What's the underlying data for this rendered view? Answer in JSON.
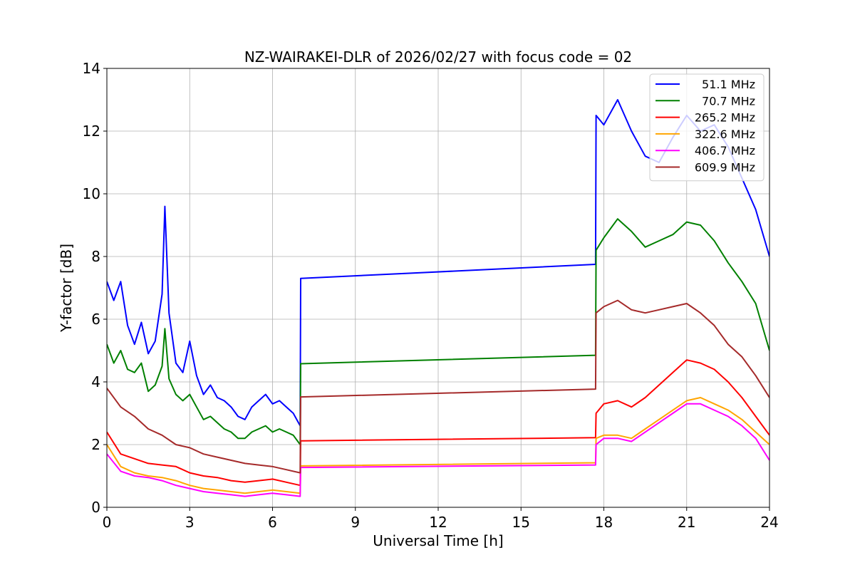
{
  "chart_data": {
    "type": "line",
    "title": "NZ-WAIRAKEI-DLR of 2026/02/27 with focus code = 02",
    "xlabel": "Universal Time [h]",
    "ylabel": "Y-factor [dB]",
    "xlim": [
      0,
      24
    ],
    "ylim": [
      0,
      14
    ],
    "xticks": [
      0,
      3,
      6,
      9,
      12,
      15,
      18,
      21,
      24
    ],
    "yticks": [
      0,
      2,
      4,
      6,
      8,
      10,
      12,
      14
    ],
    "grid": true,
    "legend_position": "top-right",
    "series": [
      {
        "name": "51.1 MHz",
        "color": "#0000ff",
        "x": [
          0,
          0.25,
          0.5,
          0.75,
          1.0,
          1.25,
          1.5,
          1.75,
          2.0,
          2.1,
          2.25,
          2.5,
          2.75,
          3.0,
          3.25,
          3.5,
          3.75,
          4.0,
          4.25,
          4.5,
          4.75,
          5.0,
          5.25,
          5.5,
          5.75,
          6.0,
          6.25,
          6.5,
          6.75,
          7.0,
          7.02,
          17.7,
          17.72,
          18.0,
          18.5,
          19.0,
          19.5,
          20.0,
          20.5,
          21.0,
          21.5,
          22.0,
          22.5,
          23.0,
          23.5,
          24.0
        ],
        "y": [
          7.2,
          6.6,
          7.2,
          5.8,
          5.2,
          5.9,
          4.9,
          5.3,
          6.8,
          9.6,
          6.2,
          4.6,
          4.3,
          5.3,
          4.2,
          3.6,
          3.9,
          3.5,
          3.4,
          3.2,
          2.9,
          2.8,
          3.2,
          3.4,
          3.6,
          3.3,
          3.4,
          3.2,
          3.0,
          2.6,
          7.3,
          7.75,
          12.5,
          12.2,
          13.0,
          12.0,
          11.2,
          11.0,
          11.8,
          12.5,
          12.0,
          12.2,
          11.5,
          10.5,
          9.5,
          8.0
        ]
      },
      {
        "name": "70.7 MHz",
        "color": "#008000",
        "x": [
          0,
          0.25,
          0.5,
          0.75,
          1.0,
          1.25,
          1.5,
          1.75,
          2.0,
          2.1,
          2.25,
          2.5,
          2.75,
          3.0,
          3.25,
          3.5,
          3.75,
          4.0,
          4.25,
          4.5,
          4.75,
          5.0,
          5.25,
          5.5,
          5.75,
          6.0,
          6.25,
          6.5,
          6.75,
          7.0,
          7.02,
          17.7,
          17.72,
          18.0,
          18.5,
          19.0,
          19.5,
          20.0,
          20.5,
          21.0,
          21.5,
          22.0,
          22.5,
          23.0,
          23.5,
          24.0
        ],
        "y": [
          5.2,
          4.6,
          5.0,
          4.4,
          4.3,
          4.6,
          3.7,
          3.9,
          4.5,
          5.7,
          4.1,
          3.6,
          3.4,
          3.6,
          3.2,
          2.8,
          2.9,
          2.7,
          2.5,
          2.4,
          2.2,
          2.2,
          2.4,
          2.5,
          2.6,
          2.4,
          2.5,
          2.4,
          2.3,
          2.0,
          4.58,
          4.85,
          8.2,
          8.6,
          9.2,
          8.8,
          8.3,
          8.5,
          8.7,
          9.1,
          9.0,
          8.5,
          7.8,
          7.2,
          6.5,
          5.0
        ]
      },
      {
        "name": "265.2 MHz",
        "color": "#ff0000",
        "x": [
          0,
          0.5,
          1.0,
          1.5,
          2.0,
          2.5,
          3.0,
          3.5,
          4.0,
          4.5,
          5.0,
          5.5,
          6.0,
          6.5,
          7.0,
          7.02,
          17.7,
          17.72,
          18.0,
          18.5,
          19.0,
          19.5,
          20.0,
          20.5,
          21.0,
          21.5,
          22.0,
          22.5,
          23.0,
          23.5,
          24.0
        ],
        "y": [
          2.4,
          1.7,
          1.55,
          1.4,
          1.35,
          1.3,
          1.1,
          1.0,
          0.95,
          0.85,
          0.8,
          0.85,
          0.9,
          0.8,
          0.7,
          2.12,
          2.22,
          3.0,
          3.3,
          3.4,
          3.2,
          3.5,
          3.9,
          4.3,
          4.7,
          4.6,
          4.4,
          4.0,
          3.5,
          2.9,
          2.3
        ]
      },
      {
        "name": "322.6 MHz",
        "color": "#ffa500",
        "x": [
          0,
          0.5,
          1.0,
          1.5,
          2.0,
          2.5,
          3.0,
          3.5,
          4.0,
          4.5,
          5.0,
          5.5,
          6.0,
          6.5,
          7.0,
          7.02,
          17.7,
          17.72,
          18.0,
          18.5,
          19.0,
          19.5,
          20.0,
          20.5,
          21.0,
          21.5,
          22.0,
          22.5,
          23.0,
          23.5,
          24.0
        ],
        "y": [
          2.0,
          1.3,
          1.1,
          1.0,
          0.95,
          0.85,
          0.7,
          0.6,
          0.55,
          0.5,
          0.45,
          0.5,
          0.55,
          0.5,
          0.45,
          1.32,
          1.42,
          2.2,
          2.3,
          2.3,
          2.2,
          2.5,
          2.8,
          3.1,
          3.4,
          3.5,
          3.3,
          3.1,
          2.8,
          2.4,
          2.0
        ]
      },
      {
        "name": "406.7 MHz",
        "color": "#ff00ff",
        "x": [
          0,
          0.5,
          1.0,
          1.5,
          2.0,
          2.5,
          3.0,
          3.5,
          4.0,
          4.5,
          5.0,
          5.5,
          6.0,
          6.5,
          7.0,
          7.02,
          17.7,
          17.72,
          18.0,
          18.5,
          19.0,
          19.5,
          20.0,
          20.5,
          21.0,
          21.5,
          22.0,
          22.5,
          23.0,
          23.5,
          24.0
        ],
        "y": [
          1.7,
          1.15,
          1.0,
          0.95,
          0.85,
          0.7,
          0.6,
          0.5,
          0.45,
          0.4,
          0.35,
          0.4,
          0.45,
          0.4,
          0.35,
          1.27,
          1.35,
          2.0,
          2.2,
          2.2,
          2.1,
          2.4,
          2.7,
          3.0,
          3.3,
          3.3,
          3.1,
          2.9,
          2.6,
          2.2,
          1.5
        ]
      },
      {
        "name": "609.9 MHz",
        "color": "#a52a2a",
        "x": [
          0,
          0.5,
          1.0,
          1.5,
          2.0,
          2.5,
          3.0,
          3.5,
          4.0,
          4.5,
          5.0,
          5.5,
          6.0,
          6.5,
          7.0,
          7.02,
          17.7,
          17.72,
          18.0,
          18.5,
          19.0,
          19.5,
          20.0,
          20.5,
          21.0,
          21.5,
          22.0,
          22.5,
          23.0,
          23.5,
          24.0
        ],
        "y": [
          3.8,
          3.2,
          2.9,
          2.5,
          2.3,
          2.0,
          1.9,
          1.7,
          1.6,
          1.5,
          1.4,
          1.35,
          1.3,
          1.2,
          1.1,
          3.52,
          3.77,
          6.2,
          6.4,
          6.6,
          6.3,
          6.2,
          6.3,
          6.4,
          6.5,
          6.2,
          5.8,
          5.2,
          4.8,
          4.2,
          3.5
        ]
      }
    ]
  }
}
